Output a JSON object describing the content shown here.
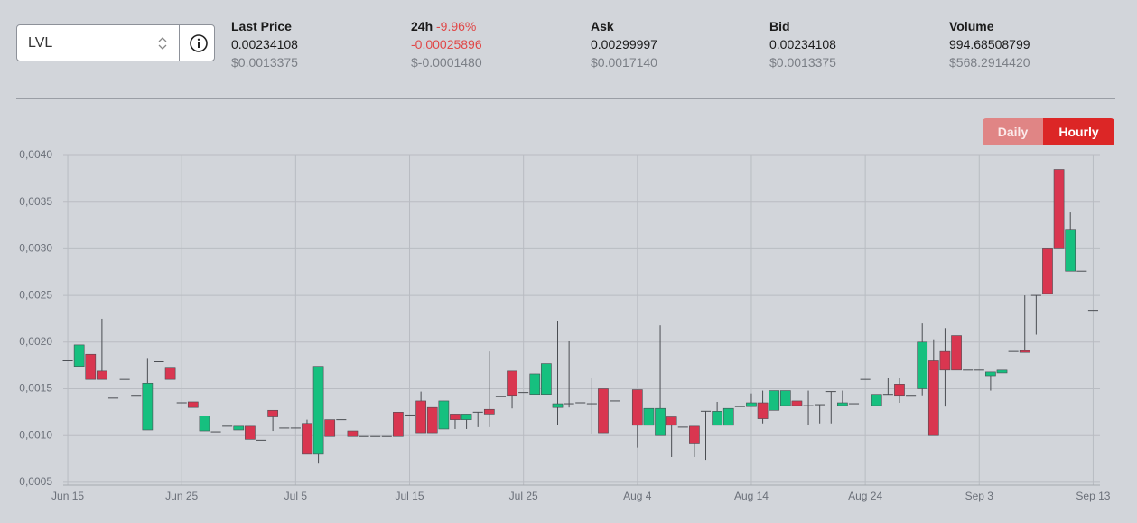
{
  "header": {
    "selector": "LVL",
    "stats": [
      {
        "label": "Last Price",
        "value": "0.00234108",
        "usd": "$0.0013375"
      },
      {
        "label": "24h",
        "change": "-9.96%",
        "value": "-0.00025896",
        "usd": "$-0.0001480"
      },
      {
        "label": "Ask",
        "value": "0.00299997",
        "usd": "$0.0017140"
      },
      {
        "label": "Bid",
        "value": "0.00234108",
        "usd": "$0.0013375"
      },
      {
        "label": "Volume",
        "value": "994.68508799",
        "usd": "$568.2914420"
      }
    ],
    "buttons": [
      "Daily",
      "Hourly"
    ]
  },
  "chart_data": {
    "type": "candlestick",
    "up_color": "#16c07f",
    "down_color": "#d93650",
    "grid": true,
    "x": [
      0,
      1,
      2,
      3,
      4,
      5,
      6,
      7,
      8,
      9,
      10,
      11,
      12,
      13,
      14,
      15,
      16,
      17,
      18,
      19,
      20,
      21,
      22,
      23,
      24,
      25,
      26,
      27,
      28,
      29,
      30,
      31,
      32,
      33,
      34,
      35,
      36,
      37,
      38,
      39,
      40,
      41,
      42,
      43,
      44,
      45,
      46,
      47,
      48,
      49,
      50,
      51,
      52,
      53,
      54,
      55,
      56,
      57,
      58,
      59,
      60,
      61,
      62,
      63,
      64,
      65,
      66,
      67,
      68,
      69,
      70,
      71,
      72,
      73,
      74,
      75,
      76,
      77,
      78,
      79,
      80,
      81,
      82,
      83,
      84,
      85,
      86,
      87,
      88,
      89,
      90
    ],
    "open": [
      0.0018,
      0.00174,
      0.00187,
      0.00169,
      0.0014,
      0.0016,
      0.00143,
      0.00106,
      0.00179,
      0.00173,
      0.00135,
      0.00136,
      0.00105,
      0.00104,
      0.0011,
      0.00106,
      0.0011,
      0.00095,
      0.00127,
      0.00108,
      0.00108,
      0.00113,
      0.0008,
      0.00117,
      0.00117,
      0.00105,
      0.00099,
      0.00099,
      0.00099,
      0.00125,
      0.00122,
      0.00137,
      0.0013,
      0.00107,
      0.00123,
      0.00117,
      0.00125,
      0.00128,
      0.00142,
      0.00169,
      0.00146,
      0.00144,
      0.00144,
      0.0013,
      0.00134,
      0.00135,
      0.00134,
      0.0015,
      0.00137,
      0.00121,
      0.00149,
      0.00111,
      0.001,
      0.0012,
      0.00109,
      0.0011,
      0.00126,
      0.00111,
      0.00111,
      0.00131,
      0.00131,
      0.00135,
      0.00127,
      0.00132,
      0.00137,
      0.00132,
      0.00133,
      0.00147,
      0.00132,
      0.00134,
      0.0016,
      0.00132,
      0.00144,
      0.00155,
      0.00143,
      0.0015,
      0.0018,
      0.0019,
      0.00207,
      0.0017,
      0.0017,
      0.00164,
      0.00167,
      0.0019,
      0.00191,
      0.0025,
      0.003,
      0.00385,
      0.00276,
      0.00276,
      0.00234
    ],
    "high": [
      0.0018,
      0.00197,
      0.00187,
      0.00225,
      0.0014,
      0.0016,
      0.00143,
      0.00183,
      0.00179,
      0.00173,
      0.00135,
      0.00136,
      0.00121,
      0.00104,
      0.0011,
      0.0011,
      0.0011,
      0.00095,
      0.00127,
      0.00108,
      0.00108,
      0.00117,
      0.00174,
      0.00117,
      0.00117,
      0.00105,
      0.00099,
      0.00099,
      0.00099,
      0.00125,
      0.00122,
      0.00147,
      0.0013,
      0.00137,
      0.00123,
      0.00123,
      0.00125,
      0.0019,
      0.00142,
      0.00169,
      0.00146,
      0.00166,
      0.00177,
      0.00223,
      0.00201,
      0.00135,
      0.00162,
      0.0015,
      0.00137,
      0.00121,
      0.00149,
      0.00129,
      0.00218,
      0.0012,
      0.00109,
      0.0011,
      0.00126,
      0.00136,
      0.00129,
      0.00131,
      0.00145,
      0.00148,
      0.00148,
      0.00148,
      0.00137,
      0.00148,
      0.00133,
      0.00147,
      0.00148,
      0.00134,
      0.0016,
      0.00144,
      0.00162,
      0.00162,
      0.00143,
      0.0022,
      0.00203,
      0.00215,
      0.00207,
      0.0017,
      0.0017,
      0.00168,
      0.002,
      0.0019,
      0.0025,
      0.0025,
      0.003,
      0.00385,
      0.00339,
      0.00276,
      0.00234
    ],
    "low": [
      0.0018,
      0.00174,
      0.0016,
      0.0016,
      0.0014,
      0.0016,
      0.00143,
      0.00106,
      0.00179,
      0.0016,
      0.00135,
      0.0013,
      0.00105,
      0.00104,
      0.0011,
      0.00106,
      0.00096,
      0.00095,
      0.00105,
      0.00108,
      0.00108,
      0.0008,
      0.0007,
      0.00099,
      0.00117,
      0.00099,
      0.00099,
      0.00099,
      0.00099,
      0.00099,
      0.00122,
      0.00103,
      0.00103,
      0.00107,
      0.00107,
      0.00107,
      0.00109,
      0.00109,
      0.00142,
      0.00129,
      0.00146,
      0.00144,
      0.00144,
      0.00111,
      0.0013,
      0.00135,
      0.00102,
      0.00103,
      0.00137,
      0.00121,
      0.00087,
      0.00111,
      0.001,
      0.00077,
      0.00109,
      0.00077,
      0.00074,
      0.00111,
      0.00111,
      0.00131,
      0.00131,
      0.00113,
      0.00127,
      0.00132,
      0.00132,
      0.00111,
      0.00113,
      0.00113,
      0.00132,
      0.00134,
      0.0016,
      0.00132,
      0.00144,
      0.00135,
      0.00143,
      0.00143,
      0.001,
      0.00131,
      0.0017,
      0.0017,
      0.0017,
      0.00148,
      0.00147,
      0.0019,
      0.00189,
      0.00208,
      0.00252,
      0.003,
      0.00276,
      0.00276,
      0.00234
    ],
    "close": [
      0.0018,
      0.00197,
      0.0016,
      0.0016,
      0.0014,
      0.0016,
      0.00143,
      0.00156,
      0.00179,
      0.0016,
      0.00135,
      0.0013,
      0.00121,
      0.00104,
      0.0011,
      0.0011,
      0.00096,
      0.00095,
      0.0012,
      0.00108,
      0.00108,
      0.0008,
      0.00174,
      0.00099,
      0.00117,
      0.00099,
      0.00099,
      0.00099,
      0.00099,
      0.00099,
      0.00122,
      0.00103,
      0.00103,
      0.00137,
      0.00117,
      0.00123,
      0.00125,
      0.00123,
      0.00142,
      0.00143,
      0.00146,
      0.00166,
      0.00177,
      0.00134,
      0.00134,
      0.00135,
      0.00134,
      0.00103,
      0.00137,
      0.00121,
      0.00111,
      0.00129,
      0.00129,
      0.00111,
      0.00109,
      0.00092,
      0.00126,
      0.00126,
      0.00129,
      0.00131,
      0.00135,
      0.00118,
      0.00148,
      0.00148,
      0.00132,
      0.00132,
      0.00133,
      0.00147,
      0.00135,
      0.00134,
      0.0016,
      0.00144,
      0.00144,
      0.00143,
      0.00143,
      0.002,
      0.001,
      0.0017,
      0.0017,
      0.0017,
      0.0017,
      0.00168,
      0.0017,
      0.0019,
      0.00189,
      0.0025,
      0.00252,
      0.003,
      0.0032,
      0.00276,
      0.00234
    ],
    "xlim": [
      -0.4,
      90.6
    ],
    "xticks": [
      {
        "value": 0,
        "label": "Jun 15"
      },
      {
        "value": 10,
        "label": "Jun 25"
      },
      {
        "value": 20,
        "label": "Jul 5"
      },
      {
        "value": 30,
        "label": "Jul 15"
      },
      {
        "value": 40,
        "label": "Jul 25"
      },
      {
        "value": 50,
        "label": "Aug 4"
      },
      {
        "value": 60,
        "label": "Aug 14"
      },
      {
        "value": 70,
        "label": "Aug 24"
      },
      {
        "value": 80,
        "label": "Sep 3"
      },
      {
        "value": 90,
        "label": "Sep 13"
      }
    ],
    "ylim": [
      0.00047,
      0.004
    ],
    "yticks": [
      {
        "value": 0.0005,
        "label": "0,0005"
      },
      {
        "value": 0.001,
        "label": "0,0010"
      },
      {
        "value": 0.0015,
        "label": "0,0015"
      },
      {
        "value": 0.002,
        "label": "0,0020"
      },
      {
        "value": 0.0025,
        "label": "0,0025"
      },
      {
        "value": 0.003,
        "label": "0,0030"
      },
      {
        "value": 0.0035,
        "label": "0,0035"
      },
      {
        "value": 0.004,
        "label": "0,0040"
      }
    ]
  }
}
